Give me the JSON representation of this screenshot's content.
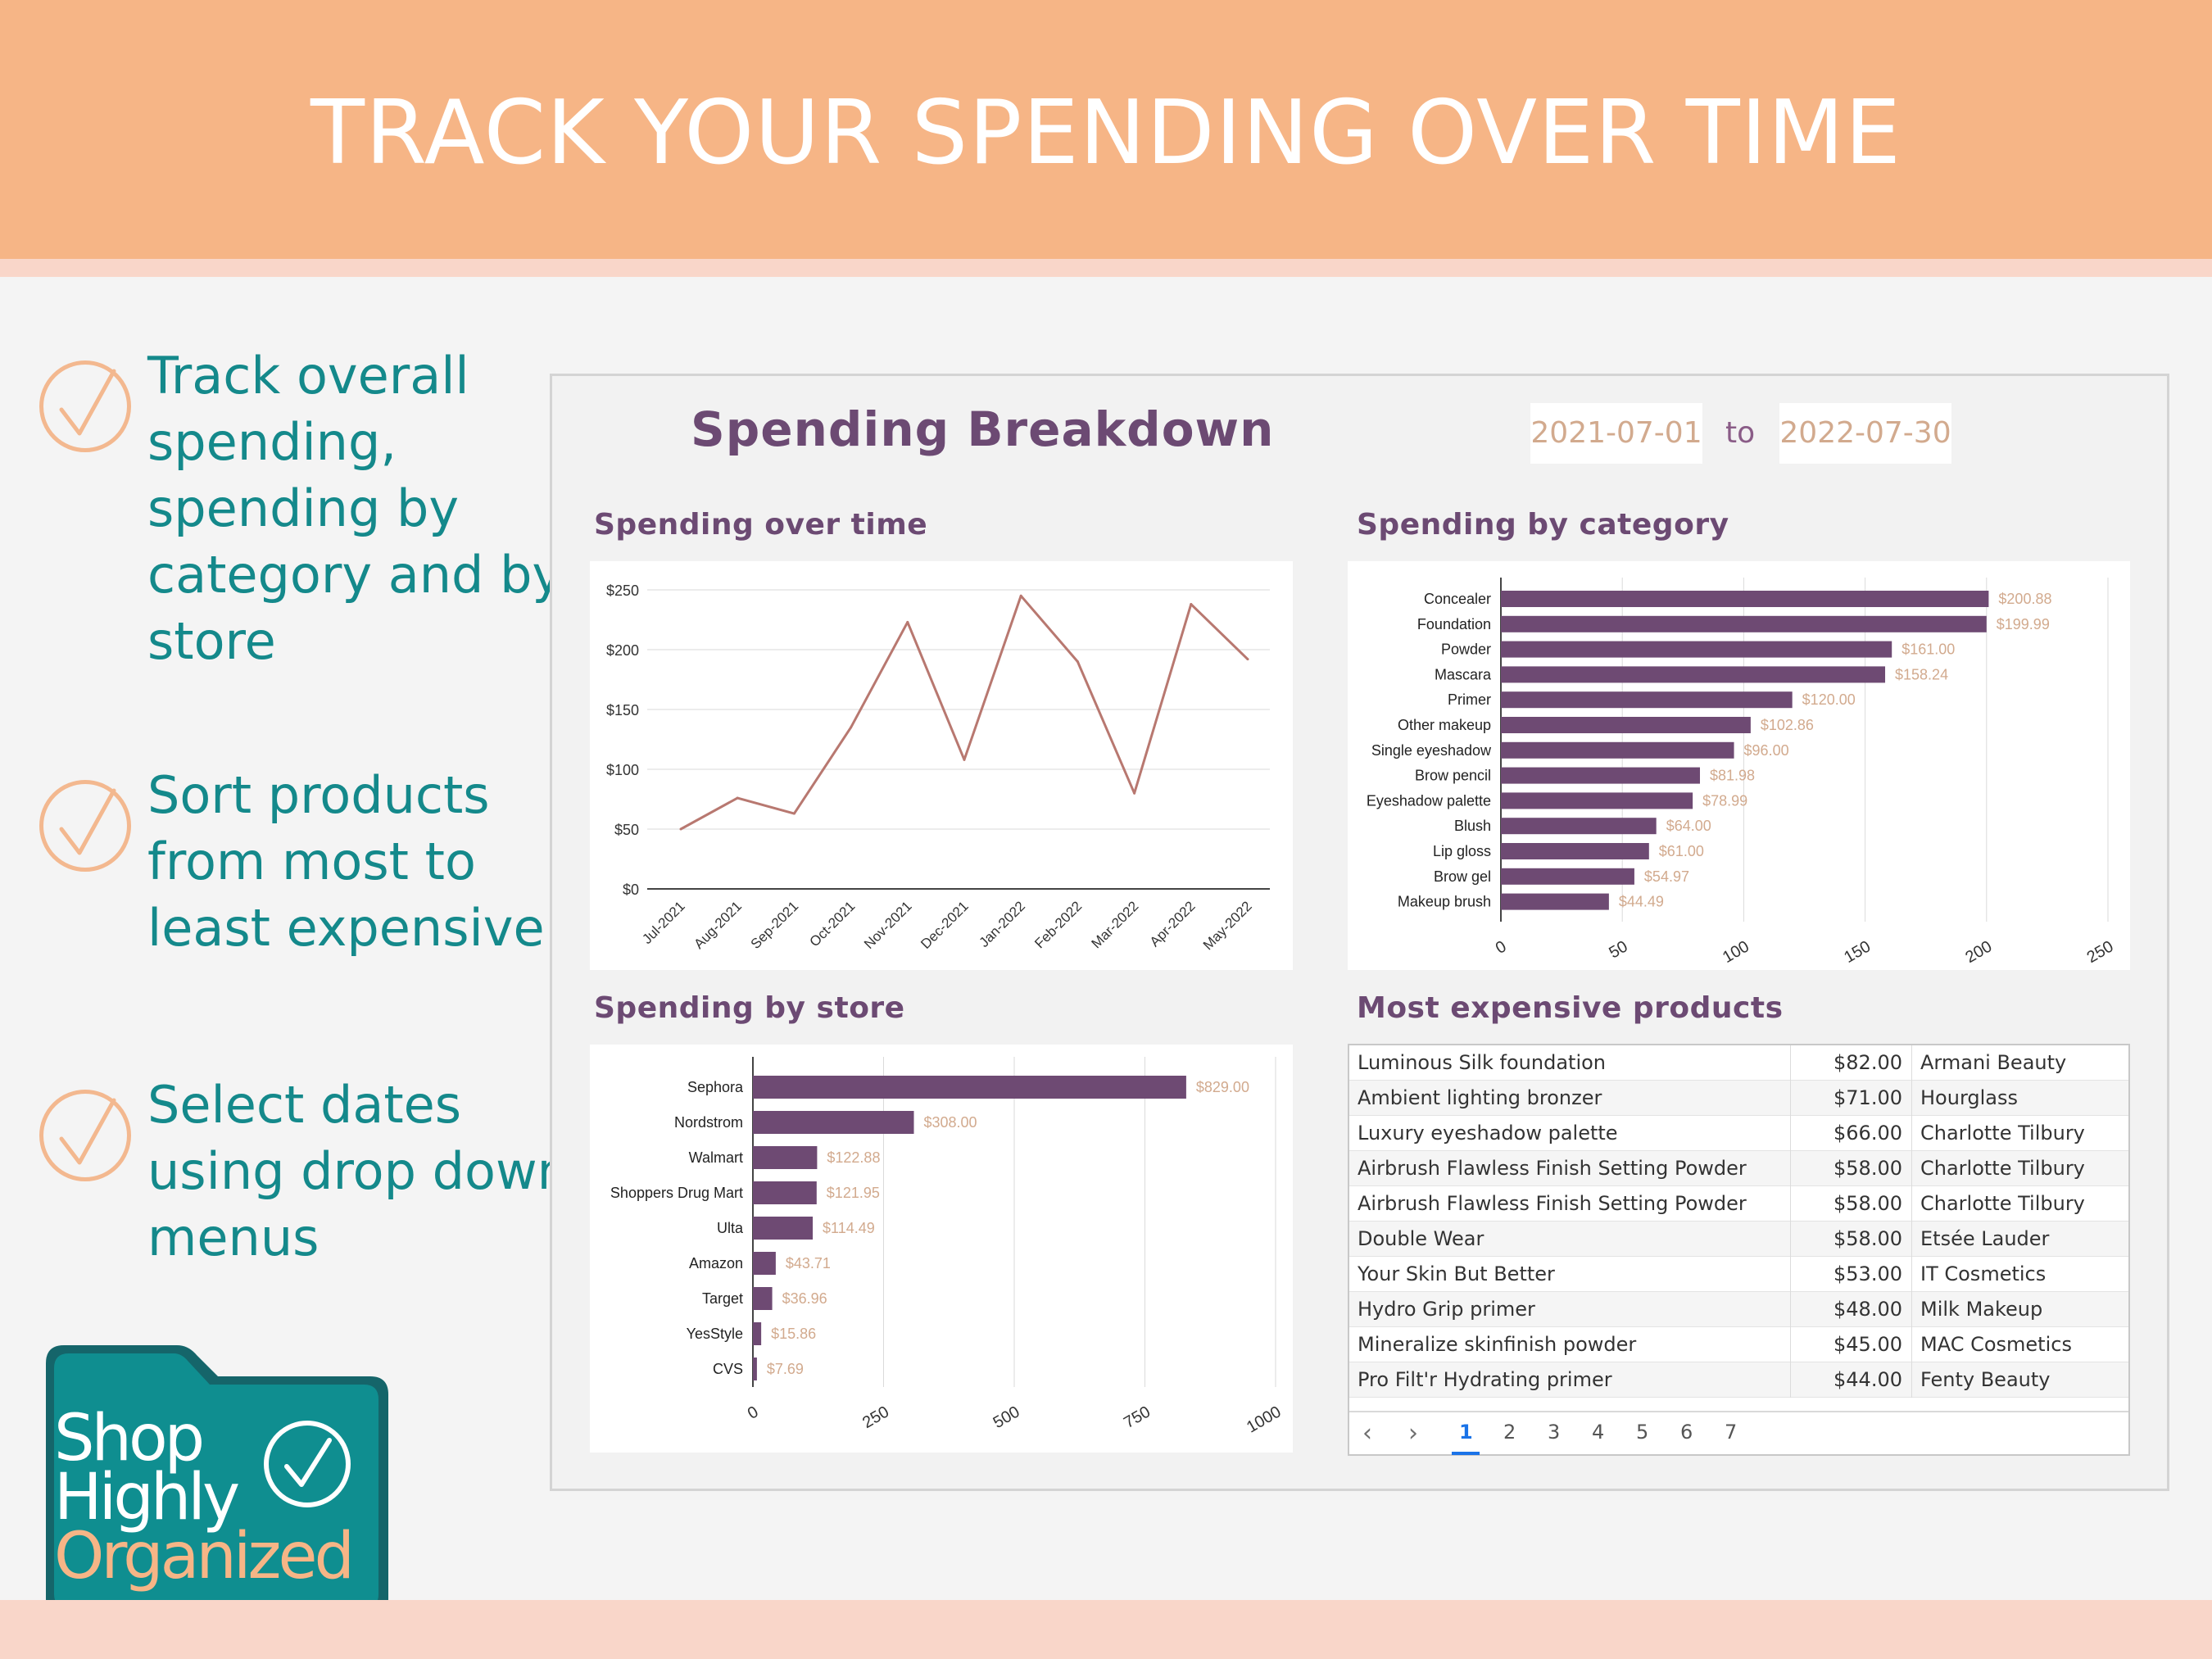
{
  "banner": {
    "headline": "TRACK YOUR SPENDING OVER TIME"
  },
  "features": [
    {
      "icon": "check-circle-icon",
      "text": "Track overall spending, spending by category and by store"
    },
    {
      "icon": "check-circle-icon",
      "text": "Sort products from most to least expensive"
    },
    {
      "icon": "check-circle-icon",
      "text": "Select dates using drop down menus"
    }
  ],
  "logo": {
    "line1": "Shop",
    "line2": "Highly",
    "line3": "Organized",
    "icon": "check-circle-icon"
  },
  "dashboard": {
    "title": "Spending Breakdown",
    "date_from": "2021-07-01",
    "date_to_label": "to",
    "date_to": "2022-07-30",
    "panels": {
      "over_time_title": "Spending over time",
      "by_category_title": "Spending by category",
      "by_store_title": "Spending by store",
      "most_expensive_title": "Most expensive products"
    }
  },
  "colors": {
    "banner": "#f6b586",
    "teal": "#14898b",
    "purple_title": "#6c4a73",
    "bar": "#6e4a73",
    "line": "#b87870",
    "data_label": "#d2aa8e"
  },
  "chart_data": [
    {
      "type": "line",
      "title": "Spending over time",
      "x": [
        "Jul-2021",
        "Aug-2021",
        "Sep-2021",
        "Oct-2021",
        "Nov-2021",
        "Dec-2021",
        "Jan-2022",
        "Feb-2022",
        "Mar-2022",
        "Apr-2022",
        "May-2022"
      ],
      "values": [
        50,
        76,
        63,
        135,
        223,
        108,
        245,
        190,
        80,
        238,
        192
      ],
      "ylim": [
        0,
        250
      ],
      "yticks": [
        "$0",
        "$50",
        "$100",
        "$150",
        "$200",
        "$250"
      ],
      "grid": true
    },
    {
      "type": "bar",
      "orientation": "horizontal",
      "title": "Spending by category",
      "categories": [
        "Concealer",
        "Foundation",
        "Powder",
        "Mascara",
        "Primer",
        "Other makeup",
        "Single eyeshadow",
        "Brow pencil",
        "Eyeshadow palette",
        "Blush",
        "Lip gloss",
        "Brow gel",
        "Makeup brush"
      ],
      "values": [
        200.88,
        199.99,
        161.0,
        158.24,
        120.0,
        102.86,
        96.0,
        81.98,
        78.99,
        64.0,
        61.0,
        54.97,
        44.49
      ],
      "labels": [
        "$200.88",
        "$199.99",
        "$161.00",
        "$158.24",
        "$120.00",
        "$102.86",
        "$96.00",
        "$81.98",
        "$78.99",
        "$64.00",
        "$61.00",
        "$54.97",
        "$44.49"
      ],
      "xlim": [
        0,
        250
      ],
      "xticks": [
        "0",
        "50",
        "100",
        "150",
        "200",
        "250"
      ],
      "grid": true
    },
    {
      "type": "bar",
      "orientation": "horizontal",
      "title": "Spending by store",
      "categories": [
        "Sephora",
        "Nordstrom",
        "Walmart",
        "Shoppers Drug Mart",
        "Ulta",
        "Amazon",
        "Target",
        "YesStyle",
        "CVS"
      ],
      "values": [
        829.0,
        308.0,
        122.88,
        121.95,
        114.49,
        43.71,
        36.96,
        15.86,
        7.69
      ],
      "labels": [
        "$829.00",
        "$308.00",
        "$122.88",
        "$121.95",
        "$114.49",
        "$43.71",
        "$36.96",
        "$15.86",
        "$7.69"
      ],
      "xlim": [
        0,
        1000
      ],
      "xticks": [
        "0",
        "250",
        "500",
        "750",
        "1000"
      ],
      "grid": true
    },
    {
      "type": "table",
      "title": "Most expensive products",
      "rows": [
        {
          "product": "Luminous Silk foundation",
          "price": "$82.00",
          "brand": "Armani Beauty"
        },
        {
          "product": "Ambient lighting bronzer",
          "price": "$71.00",
          "brand": "Hourglass"
        },
        {
          "product": "Luxury eyeshadow palette",
          "price": "$66.00",
          "brand": "Charlotte Tilbury"
        },
        {
          "product": "Airbrush Flawless Finish Setting Powder",
          "price": "$58.00",
          "brand": "Charlotte Tilbury"
        },
        {
          "product": "Airbrush Flawless Finish Setting Powder",
          "price": "$58.00",
          "brand": "Charlotte Tilbury"
        },
        {
          "product": "Double Wear",
          "price": "$58.00",
          "brand": "Etsée Lauder"
        },
        {
          "product": "Your Skin But Better",
          "price": "$53.00",
          "brand": "IT Cosmetics"
        },
        {
          "product": "Hydro Grip primer",
          "price": "$48.00",
          "brand": "Milk Makeup"
        },
        {
          "product": "Mineralize skinfinish powder",
          "price": "$45.00",
          "brand": "MAC Cosmetics"
        },
        {
          "product": "Pro Filt'r Hydrating primer",
          "price": "$44.00",
          "brand": "Fenty Beauty"
        }
      ],
      "pagination": {
        "prev_icon": "chevron-left-icon",
        "next_icon": "chevron-right-icon",
        "pages": [
          "1",
          "2",
          "3",
          "4",
          "5",
          "6",
          "7"
        ],
        "current": "1"
      }
    }
  ]
}
